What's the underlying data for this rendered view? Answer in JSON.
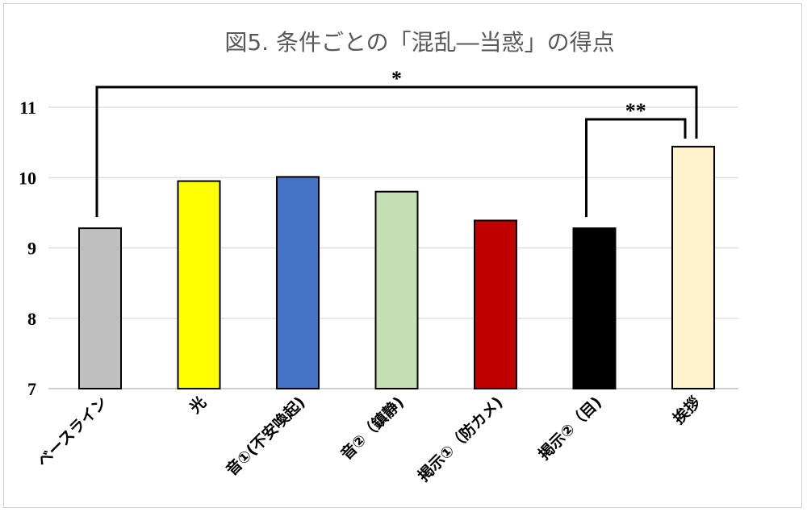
{
  "chart_data": {
    "type": "bar",
    "title": "図5.  条件ごとの「混乱―当惑」の得点",
    "xlabel": "",
    "ylabel": "",
    "ylim": [
      7,
      11
    ],
    "yticks": [
      7,
      8,
      9,
      10,
      11
    ],
    "grid": true,
    "categories": [
      "ベースライン",
      "光",
      "音①(不安喚起)",
      "音②（鎮静)",
      "掲示①（防カメ)",
      "掲示②（目)",
      "挨拶"
    ],
    "values": [
      9.28,
      9.95,
      10.01,
      9.8,
      9.39,
      9.28,
      10.44
    ],
    "colors": [
      "#bfbfbf",
      "#ffff00",
      "#4472c4",
      "#c5e0b4",
      "#c00000",
      "#000000",
      "#fff2cc"
    ],
    "significance": [
      {
        "from": 0,
        "to": 6,
        "label": "*"
      },
      {
        "from": 5,
        "to": 6,
        "label": "**"
      }
    ]
  }
}
